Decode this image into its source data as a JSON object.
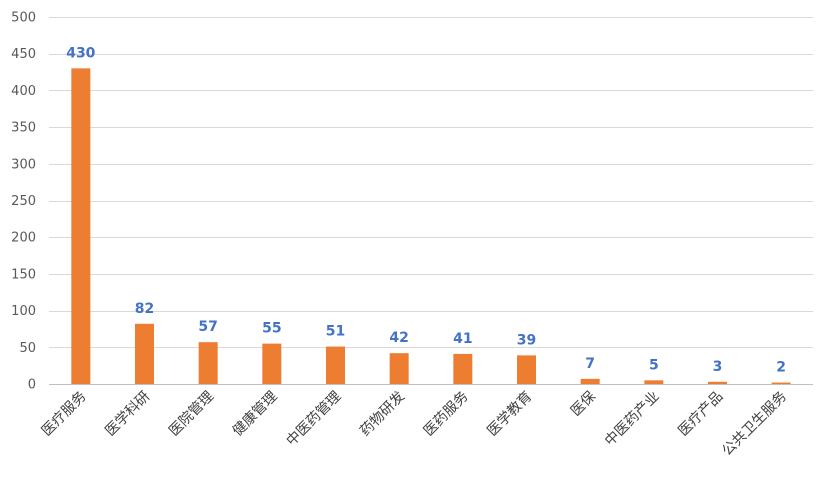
{
  "chart_data": {
    "type": "bar",
    "title": "",
    "xlabel": "",
    "ylabel": "",
    "ylim": [
      0,
      500
    ],
    "yticks": [
      0,
      50,
      100,
      150,
      200,
      250,
      300,
      350,
      400,
      450,
      500
    ],
    "grid": true,
    "legend": "none",
    "categories": [
      "医疗服务",
      "医学科研",
      "医院管理",
      "健康管理",
      "中医药管理",
      "药物研发",
      "医药服务",
      "医学教育",
      "医保",
      "中医药产业",
      "医疗产品",
      "公共卫生服务"
    ],
    "values": [
      430,
      82,
      57,
      55,
      51,
      42,
      41,
      39,
      7,
      5,
      3,
      2
    ],
    "colors": {
      "bar": "#ed7d31",
      "data_label": "#4472c4",
      "grid": "#d9d9d9",
      "axis_text": "#595959"
    }
  }
}
